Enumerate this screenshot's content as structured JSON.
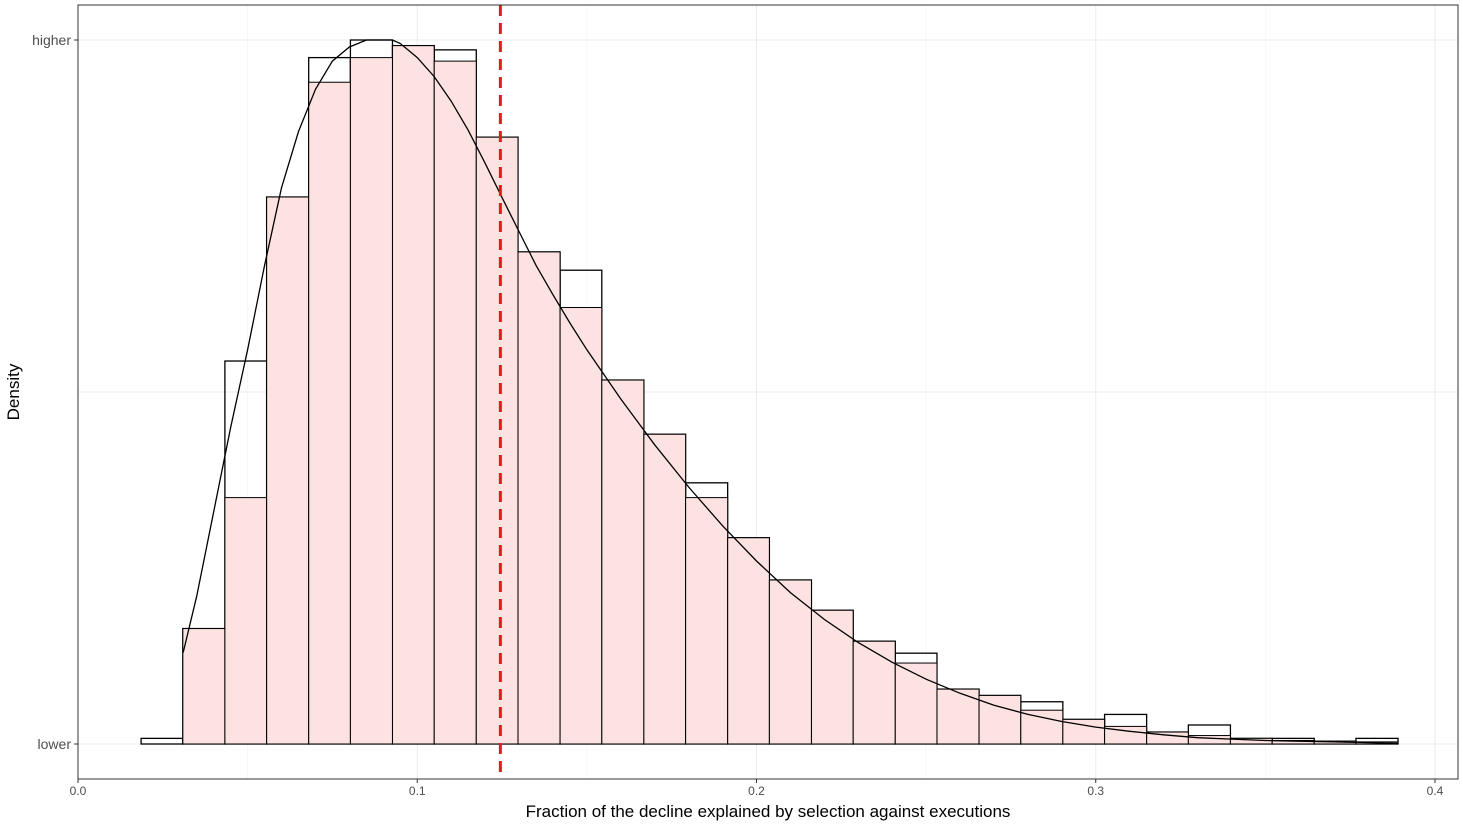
{
  "chart_data": {
    "type": "bar",
    "xlabel": "Fraction of the decline explained by selection against executions",
    "ylabel": "Density",
    "xlim": [
      0,
      0.4
    ],
    "x_ticks": [
      0,
      0.1,
      0.2,
      0.3,
      0.4
    ],
    "x_tick_labels": [
      "0.0",
      "0.1",
      "0.2",
      "0.3",
      "0.4"
    ],
    "y_tick_labels": [
      "lower",
      "higher"
    ],
    "grid": true,
    "bin_width": 0.01235,
    "histogram_bins": [
      {
        "x0": 0.0186,
        "x1": 0.0309,
        "value": 0.008
      },
      {
        "x0": 0.0309,
        "x1": 0.0433,
        "value": 0.164
      },
      {
        "x0": 0.0433,
        "x1": 0.0556,
        "value": 0.544
      },
      {
        "x0": 0.0556,
        "x1": 0.068,
        "value": 0.777
      },
      {
        "x0": 0.068,
        "x1": 0.0803,
        "value": 0.975
      },
      {
        "x0": 0.0803,
        "x1": 0.0927,
        "value": 1.0
      },
      {
        "x0": 0.0927,
        "x1": 0.105,
        "value": 0.992
      },
      {
        "x0": 0.105,
        "x1": 0.1174,
        "value": 0.986
      },
      {
        "x0": 0.1174,
        "x1": 0.1297,
        "value": 0.862
      },
      {
        "x0": 0.1297,
        "x1": 0.1421,
        "value": 0.699
      },
      {
        "x0": 0.1421,
        "x1": 0.1544,
        "value": 0.673
      },
      {
        "x0": 0.1544,
        "x1": 0.1668,
        "value": 0.517
      },
      {
        "x0": 0.1668,
        "x1": 0.1791,
        "value": 0.44
      },
      {
        "x0": 0.1791,
        "x1": 0.1915,
        "value": 0.371
      },
      {
        "x0": 0.1915,
        "x1": 0.2038,
        "value": 0.293
      },
      {
        "x0": 0.2038,
        "x1": 0.2162,
        "value": 0.233
      },
      {
        "x0": 0.2162,
        "x1": 0.2285,
        "value": 0.19
      },
      {
        "x0": 0.2285,
        "x1": 0.2409,
        "value": 0.146
      },
      {
        "x0": 0.2409,
        "x1": 0.2532,
        "value": 0.129
      },
      {
        "x0": 0.2532,
        "x1": 0.2656,
        "value": 0.078
      },
      {
        "x0": 0.2656,
        "x1": 0.2779,
        "value": 0.069
      },
      {
        "x0": 0.2779,
        "x1": 0.2903,
        "value": 0.06
      },
      {
        "x0": 0.2903,
        "x1": 0.3026,
        "value": 0.035
      },
      {
        "x0": 0.3026,
        "x1": 0.315,
        "value": 0.042
      },
      {
        "x0": 0.315,
        "x1": 0.3273,
        "value": 0.017
      },
      {
        "x0": 0.3273,
        "x1": 0.3397,
        "value": 0.027
      },
      {
        "x0": 0.3397,
        "x1": 0.352,
        "value": 0.008
      },
      {
        "x0": 0.352,
        "x1": 0.3644,
        "value": 0.008
      },
      {
        "x0": 0.3644,
        "x1": 0.3767,
        "value": 0.004
      },
      {
        "x0": 0.3767,
        "x1": 0.3891,
        "value": 0.008
      }
    ],
    "density_bins": [
      {
        "x0": 0.0309,
        "x1": 0.0433,
        "value": 0.164
      },
      {
        "x0": 0.0433,
        "x1": 0.0556,
        "value": 0.35
      },
      {
        "x0": 0.0556,
        "x1": 0.068,
        "value": 0.777
      },
      {
        "x0": 0.068,
        "x1": 0.0803,
        "value": 0.94
      },
      {
        "x0": 0.0803,
        "x1": 0.0927,
        "value": 0.975
      },
      {
        "x0": 0.0927,
        "x1": 0.105,
        "value": 0.992
      },
      {
        "x0": 0.105,
        "x1": 0.1174,
        "value": 0.97
      },
      {
        "x0": 0.1174,
        "x1": 0.1297,
        "value": 0.862
      },
      {
        "x0": 0.1297,
        "x1": 0.1421,
        "value": 0.699
      },
      {
        "x0": 0.1421,
        "x1": 0.1544,
        "value": 0.62
      },
      {
        "x0": 0.1544,
        "x1": 0.1668,
        "value": 0.517
      },
      {
        "x0": 0.1668,
        "x1": 0.1791,
        "value": 0.44
      },
      {
        "x0": 0.1791,
        "x1": 0.1915,
        "value": 0.35
      },
      {
        "x0": 0.1915,
        "x1": 0.2038,
        "value": 0.293
      },
      {
        "x0": 0.2038,
        "x1": 0.2162,
        "value": 0.233
      },
      {
        "x0": 0.2162,
        "x1": 0.2285,
        "value": 0.19
      },
      {
        "x0": 0.2285,
        "x1": 0.2409,
        "value": 0.146
      },
      {
        "x0": 0.2409,
        "x1": 0.2532,
        "value": 0.115
      },
      {
        "x0": 0.2532,
        "x1": 0.2656,
        "value": 0.078
      },
      {
        "x0": 0.2656,
        "x1": 0.2779,
        "value": 0.069
      },
      {
        "x0": 0.2779,
        "x1": 0.2903,
        "value": 0.048
      },
      {
        "x0": 0.2903,
        "x1": 0.3026,
        "value": 0.035
      },
      {
        "x0": 0.3026,
        "x1": 0.315,
        "value": 0.025
      },
      {
        "x0": 0.315,
        "x1": 0.3273,
        "value": 0.017
      },
      {
        "x0": 0.3273,
        "x1": 0.3397,
        "value": 0.012
      },
      {
        "x0": 0.3397,
        "x1": 0.352,
        "value": 0.008
      },
      {
        "x0": 0.352,
        "x1": 0.3644,
        "value": 0.005
      },
      {
        "x0": 0.3644,
        "x1": 0.3767,
        "value": 0.004
      },
      {
        "x0": 0.3767,
        "x1": 0.3891,
        "value": 0.003
      }
    ],
    "density_curve": {
      "x": [
        0.031,
        0.035,
        0.04,
        0.045,
        0.05,
        0.055,
        0.06,
        0.065,
        0.07,
        0.075,
        0.08,
        0.085,
        0.09,
        0.0927,
        0.095,
        0.1,
        0.105,
        0.11,
        0.115,
        0.12,
        0.125,
        0.13,
        0.135,
        0.14,
        0.145,
        0.15,
        0.16,
        0.17,
        0.18,
        0.19,
        0.2,
        0.21,
        0.22,
        0.23,
        0.24,
        0.25,
        0.26,
        0.27,
        0.28,
        0.29,
        0.3,
        0.31,
        0.32,
        0.33,
        0.34,
        0.35,
        0.36,
        0.37,
        0.38,
        0.389
      ],
      "y": [
        0.13,
        0.21,
        0.33,
        0.45,
        0.56,
        0.68,
        0.79,
        0.87,
        0.93,
        0.97,
        0.99,
        1.0,
        1.0,
        1.0,
        0.995,
        0.975,
        0.948,
        0.913,
        0.872,
        0.825,
        0.776,
        0.728,
        0.68,
        0.638,
        0.598,
        0.56,
        0.49,
        0.425,
        0.365,
        0.31,
        0.26,
        0.215,
        0.177,
        0.144,
        0.116,
        0.092,
        0.072,
        0.055,
        0.042,
        0.032,
        0.024,
        0.018,
        0.013,
        0.009,
        0.007,
        0.005,
        0.004,
        0.003,
        0.002,
        0.001
      ]
    },
    "reference_line": {
      "x": 0.1245,
      "color": "#e41a1c",
      "style": "dashed"
    },
    "fill_color": "#fde0e0"
  }
}
